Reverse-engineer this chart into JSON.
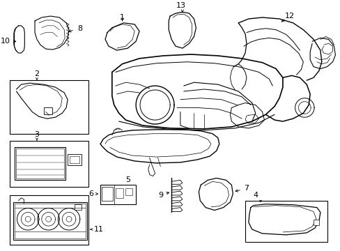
{
  "background_color": "#ffffff",
  "line_color": "#000000",
  "text_color": "#000000",
  "fig_width": 4.89,
  "fig_height": 3.6,
  "dpi": 100
}
